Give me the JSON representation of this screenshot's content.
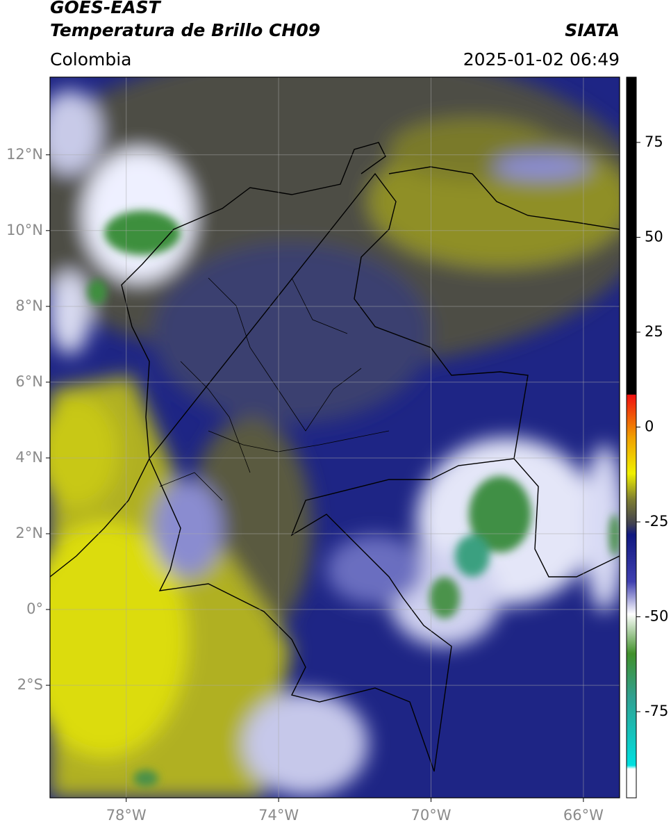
{
  "header": {
    "satellite": "GOES-EAST",
    "product": "Temperatura de Brillo CH09",
    "agency": "SIATA",
    "region": "Colombia",
    "datetime": "2025-01-02 06:49"
  },
  "map": {
    "xlim": [
      -80,
      -65.05
    ],
    "ylim": [
      -4.97,
      14.05
    ],
    "xticks": [
      {
        "value": -78,
        "label": "78°W"
      },
      {
        "value": -74,
        "label": "74°W"
      },
      {
        "value": -70,
        "label": "70°W"
      },
      {
        "value": -66,
        "label": "66°W"
      }
    ],
    "yticks": [
      {
        "value": 12,
        "label": "12°N"
      },
      {
        "value": 10,
        "label": "10°N"
      },
      {
        "value": 8,
        "label": "8°N"
      },
      {
        "value": 6,
        "label": "6°N"
      },
      {
        "value": 4,
        "label": "4°N"
      },
      {
        "value": 2,
        "label": "2°N"
      },
      {
        "value": 0,
        "label": "0°"
      },
      {
        "value": -2,
        "label": "2°S"
      }
    ],
    "grid": true
  },
  "colorbar": {
    "lim": [
      -97.7,
      92.2
    ],
    "ticks": [
      75,
      50,
      25,
      0,
      -25,
      -50,
      -75
    ]
  }
}
